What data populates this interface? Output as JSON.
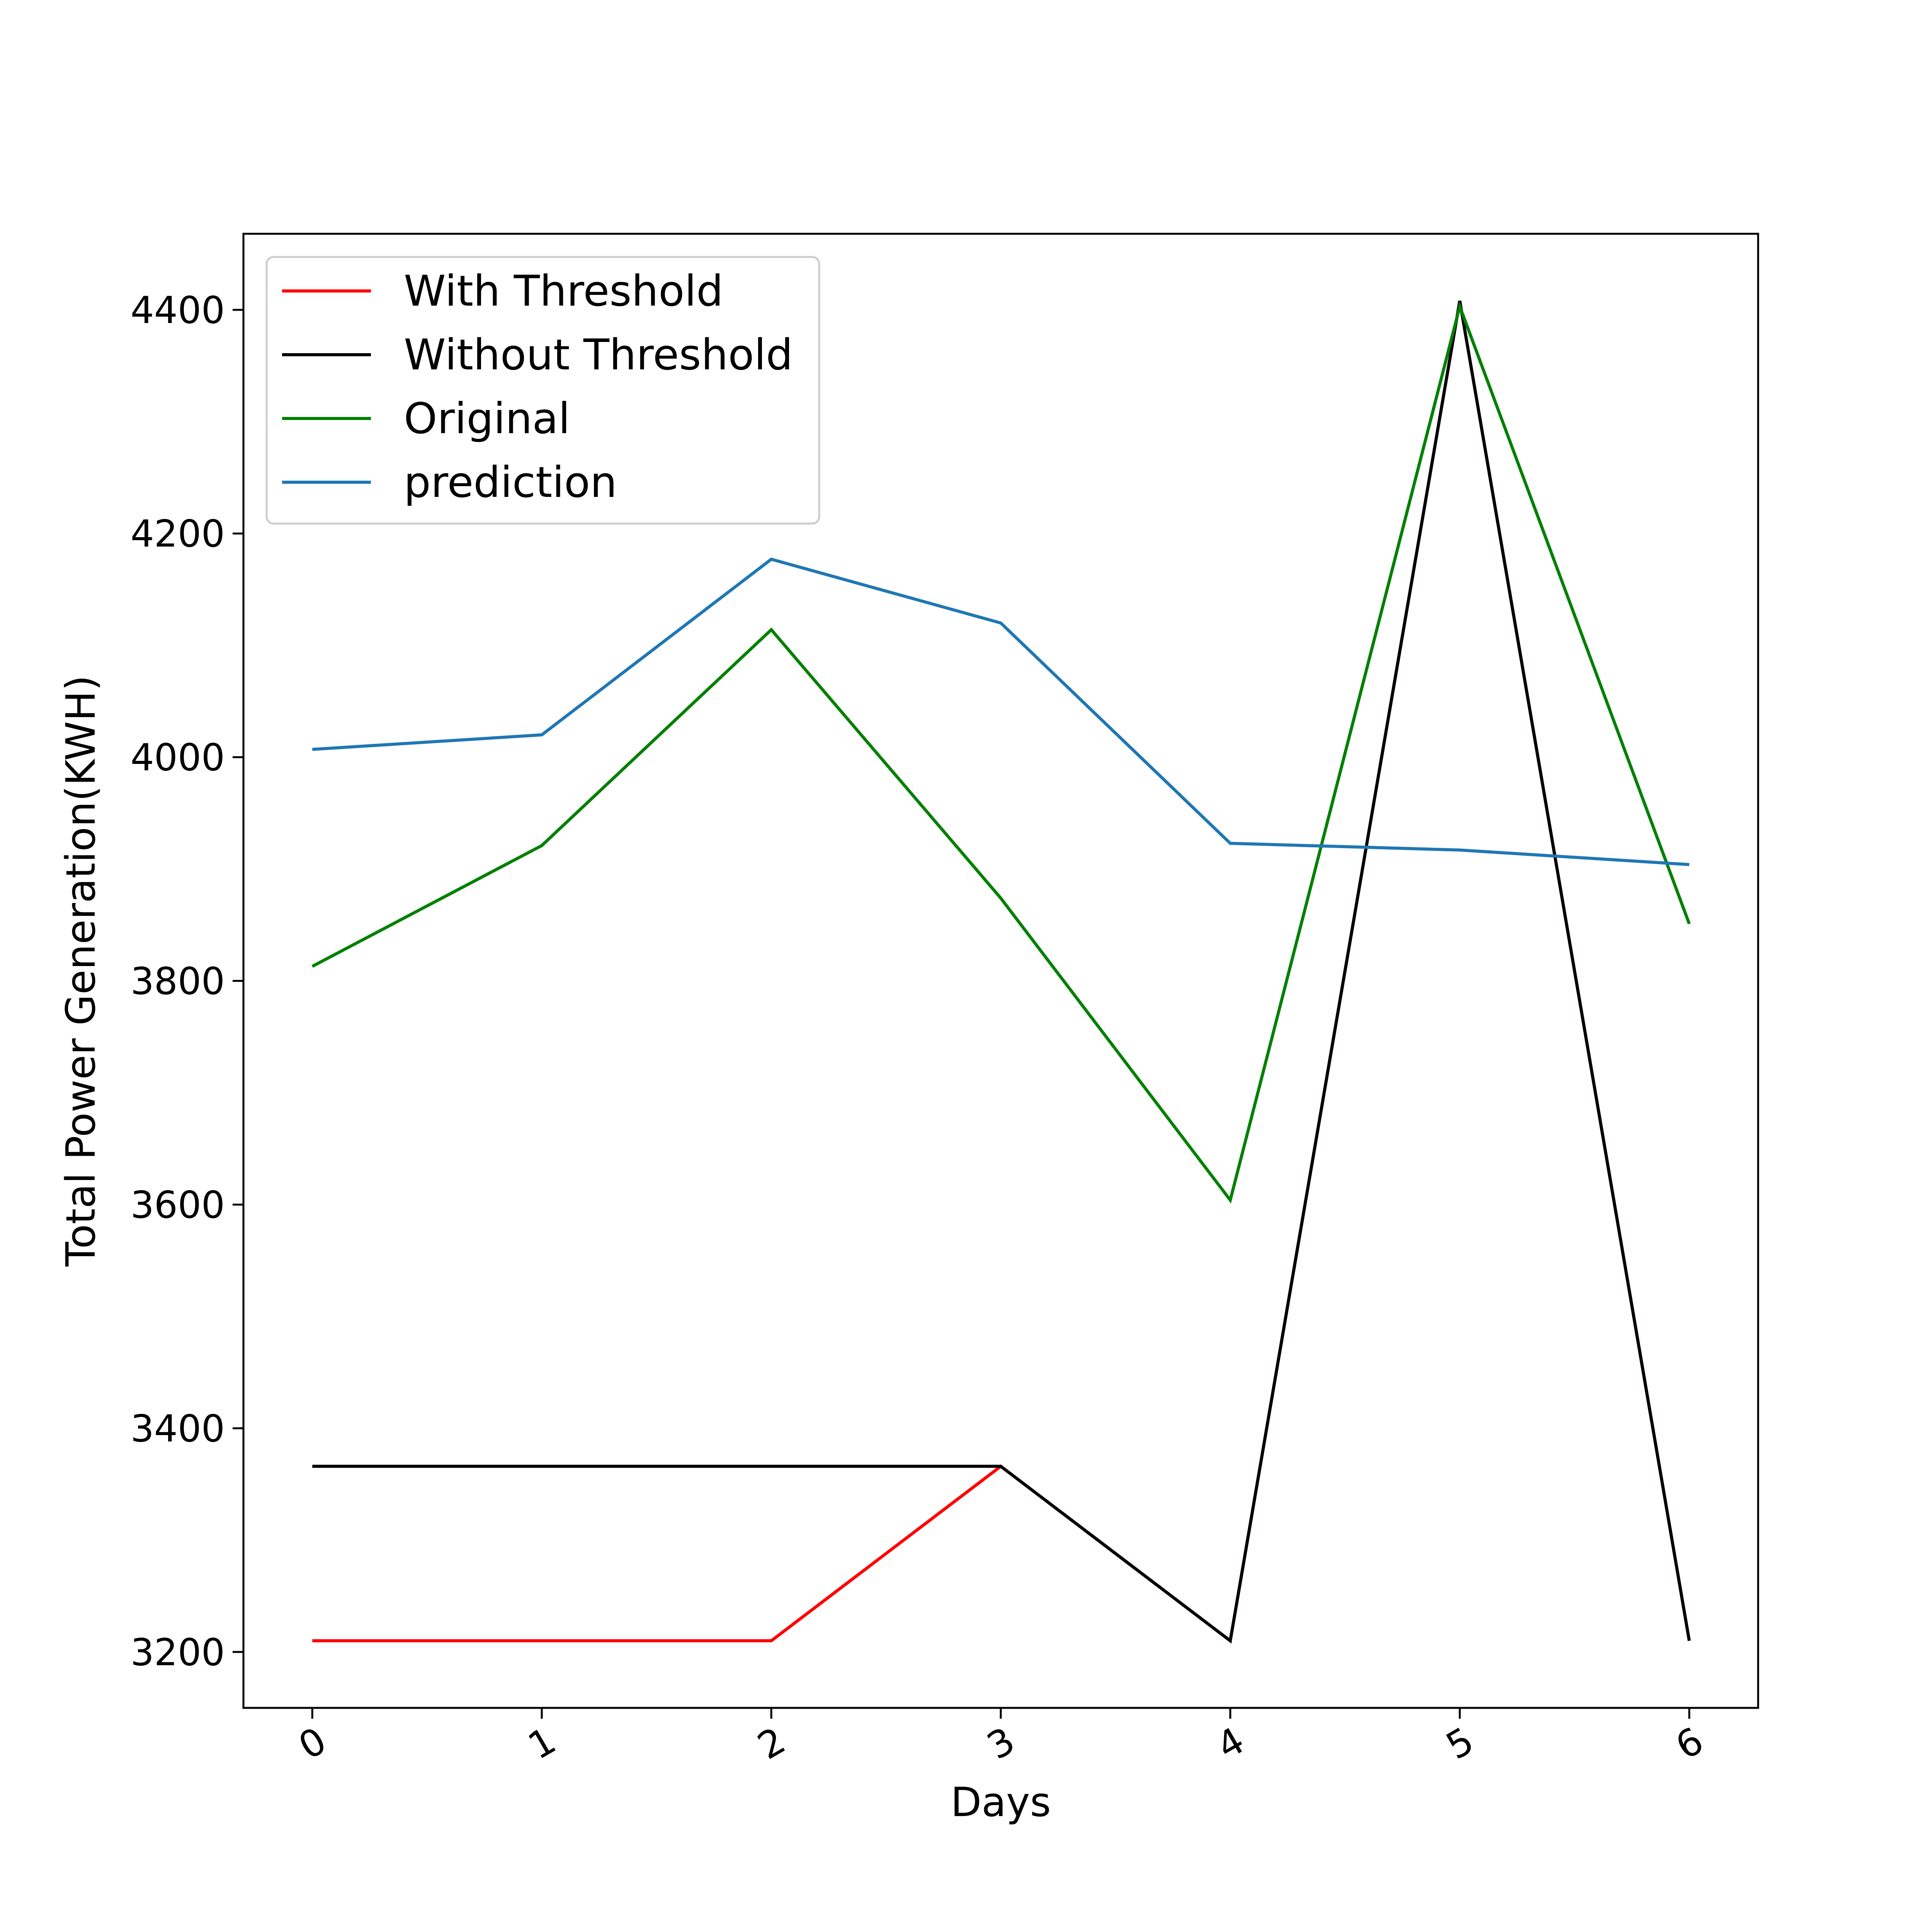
{
  "chart_data": {
    "type": "line",
    "title": "",
    "xlabel": "Days",
    "ylabel": "Total Power Generation(KWH)",
    "x": [
      0,
      1,
      2,
      3,
      4,
      5,
      6
    ],
    "x_tick_labels": [
      "0",
      "1",
      "2",
      "3",
      "4",
      "5",
      "6"
    ],
    "xlim": [
      -0.3,
      6.3
    ],
    "y_ticks": [
      3200,
      3400,
      3600,
      3800,
      4000,
      4200,
      4400
    ],
    "y_tick_labels": [
      "3200",
      "3400",
      "3600",
      "3800",
      "4000",
      "4200",
      "4400"
    ],
    "ylim": [
      3150,
      4468
    ],
    "x_tick_rotation": "rotated",
    "grid": false,
    "legend_position": "top-left",
    "series": [
      {
        "name": "With Threshold",
        "color": "#ff0000",
        "values": [
          3210,
          3210,
          3210,
          3366,
          3210,
          4408,
          3210
        ]
      },
      {
        "name": "Without Threshold",
        "color": "#000000",
        "values": [
          3366,
          3366,
          3366,
          3366,
          3210,
          4408,
          3210
        ]
      },
      {
        "name": "Original",
        "color": "#008000",
        "values": [
          3813,
          3921,
          4114,
          3874,
          3604,
          4403,
          3851
        ]
      },
      {
        "name": "prediction",
        "color": "#1f77b4",
        "values": [
          4007,
          4020,
          4177,
          4120,
          3923,
          3917,
          3904
        ]
      }
    ]
  }
}
